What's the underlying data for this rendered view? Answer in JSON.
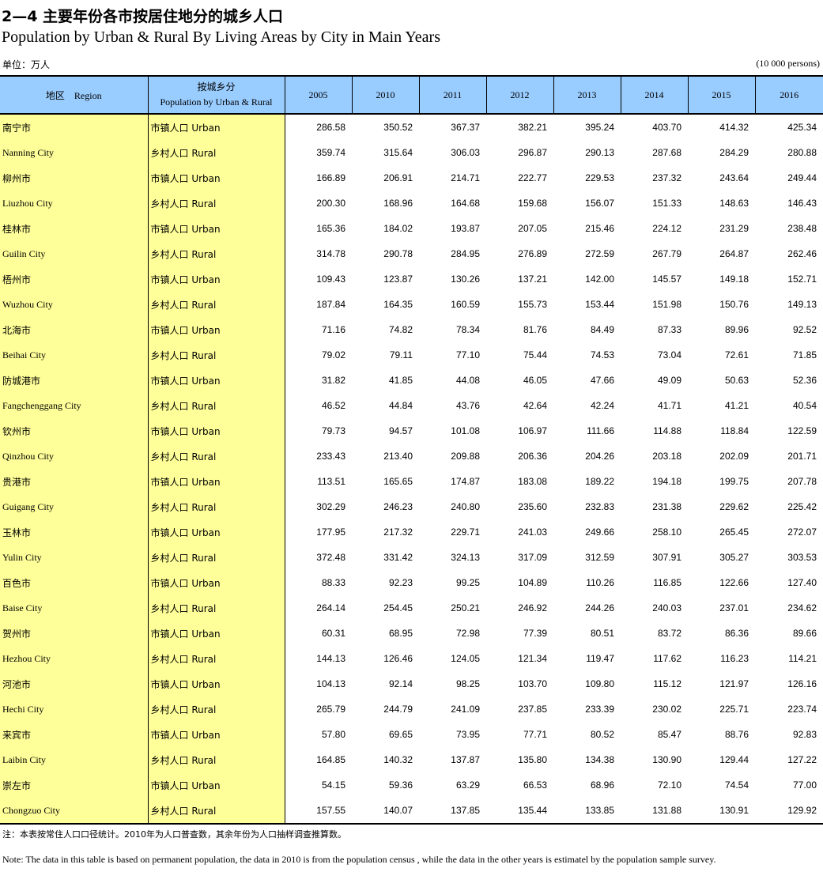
{
  "title": {
    "cn": "2—4 主要年份各市按居住地分的城乡人口",
    "en": "Population by Urban & Rural By Living Areas by City in Main Years"
  },
  "unit": {
    "cn": "单位：万人",
    "en": "(10 000 persons)"
  },
  "table": {
    "header": {
      "region": "地区    Region",
      "category_cn": "按城乡分",
      "category_en": "Population by Urban & Rural",
      "years": [
        "2005",
        "2010",
        "2011",
        "2012",
        "2013",
        "2014",
        "2015",
        "2016"
      ]
    },
    "rows": [
      {
        "region": "南宁市",
        "lang": "cn",
        "category": "市镇人口 Urban",
        "values": [
          "286.58",
          "350.52",
          "367.37",
          "382.21",
          "395.24",
          "403.70",
          "414.32",
          "425.34"
        ]
      },
      {
        "region": "Nanning City",
        "lang": "en",
        "category": "乡村人口 Rural",
        "values": [
          "359.74",
          "315.64",
          "306.03",
          "296.87",
          "290.13",
          "287.68",
          "284.29",
          "280.88"
        ]
      },
      {
        "region": "柳州市",
        "lang": "cn",
        "category": "市镇人口 Urban",
        "values": [
          "166.89",
          "206.91",
          "214.71",
          "222.77",
          "229.53",
          "237.32",
          "243.64",
          "249.44"
        ]
      },
      {
        "region": "Liuzhou City",
        "lang": "en",
        "category": "乡村人口 Rural",
        "values": [
          "200.30",
          "168.96",
          "164.68",
          "159.68",
          "156.07",
          "151.33",
          "148.63",
          "146.43"
        ]
      },
      {
        "region": "桂林市",
        "lang": "cn",
        "category": "市镇人口 Urban",
        "values": [
          "165.36",
          "184.02",
          "193.87",
          "207.05",
          "215.46",
          "224.12",
          "231.29",
          "238.48"
        ]
      },
      {
        "region": "Guilin City",
        "lang": "en",
        "category": "乡村人口 Rural",
        "values": [
          "314.78",
          "290.78",
          "284.95",
          "276.89",
          "272.59",
          "267.79",
          "264.87",
          "262.46"
        ]
      },
      {
        "region": "梧州市",
        "lang": "cn",
        "category": "市镇人口 Urban",
        "values": [
          "109.43",
          "123.87",
          "130.26",
          "137.21",
          "142.00",
          "145.57",
          "149.18",
          "152.71"
        ]
      },
      {
        "region": "Wuzhou City",
        "lang": "en",
        "category": "乡村人口 Rural",
        "values": [
          "187.84",
          "164.35",
          "160.59",
          "155.73",
          "153.44",
          "151.98",
          "150.76",
          "149.13"
        ]
      },
      {
        "region": "北海市",
        "lang": "cn",
        "category": "市镇人口 Urban",
        "values": [
          "71.16",
          "74.82",
          "78.34",
          "81.76",
          "84.49",
          "87.33",
          "89.96",
          "92.52"
        ]
      },
      {
        "region": "Beihai City",
        "lang": "en",
        "category": "乡村人口 Rural",
        "values": [
          "79.02",
          "79.11",
          "77.10",
          "75.44",
          "74.53",
          "73.04",
          "72.61",
          "71.85"
        ]
      },
      {
        "region": "防城港市",
        "lang": "cn",
        "category": "市镇人口 Urban",
        "values": [
          "31.82",
          "41.85",
          "44.08",
          "46.05",
          "47.66",
          "49.09",
          "50.63",
          "52.36"
        ]
      },
      {
        "region": "Fangchenggang City",
        "lang": "en",
        "category": "乡村人口 Rural",
        "values": [
          "46.52",
          "44.84",
          "43.76",
          "42.64",
          "42.24",
          "41.71",
          "41.21",
          "40.54"
        ]
      },
      {
        "region": "钦州市",
        "lang": "cn",
        "category": "市镇人口 Urban",
        "values": [
          "79.73",
          "94.57",
          "101.08",
          "106.97",
          "111.66",
          "114.88",
          "118.84",
          "122.59"
        ]
      },
      {
        "region": "Qinzhou City",
        "lang": "en",
        "category": "乡村人口 Rural",
        "values": [
          "233.43",
          "213.40",
          "209.88",
          "206.36",
          "204.26",
          "203.18",
          "202.09",
          "201.71"
        ]
      },
      {
        "region": "贵港市",
        "lang": "cn",
        "category": "市镇人口 Urban",
        "values": [
          "113.51",
          "165.65",
          "174.87",
          "183.08",
          "189.22",
          "194.18",
          "199.75",
          "207.78"
        ]
      },
      {
        "region": "Guigang City",
        "lang": "en",
        "category": "乡村人口 Rural",
        "values": [
          "302.29",
          "246.23",
          "240.80",
          "235.60",
          "232.83",
          "231.38",
          "229.62",
          "225.42"
        ]
      },
      {
        "region": "玉林市",
        "lang": "cn",
        "category": "市镇人口 Urban",
        "values": [
          "177.95",
          "217.32",
          "229.71",
          "241.03",
          "249.66",
          "258.10",
          "265.45",
          "272.07"
        ]
      },
      {
        "region": "Yulin City",
        "lang": "en",
        "category": "乡村人口 Rural",
        "values": [
          "372.48",
          "331.42",
          "324.13",
          "317.09",
          "312.59",
          "307.91",
          "305.27",
          "303.53"
        ]
      },
      {
        "region": "百色市",
        "lang": "cn",
        "category": "市镇人口 Urban",
        "values": [
          "88.33",
          "92.23",
          "99.25",
          "104.89",
          "110.26",
          "116.85",
          "122.66",
          "127.40"
        ]
      },
      {
        "region": "Baise City",
        "lang": "en",
        "category": "乡村人口 Rural",
        "values": [
          "264.14",
          "254.45",
          "250.21",
          "246.92",
          "244.26",
          "240.03",
          "237.01",
          "234.62"
        ]
      },
      {
        "region": "贺州市",
        "lang": "cn",
        "category": "市镇人口 Urban",
        "values": [
          "60.31",
          "68.95",
          "72.98",
          "77.39",
          "80.51",
          "83.72",
          "86.36",
          "89.66"
        ]
      },
      {
        "region": "Hezhou City",
        "lang": "en",
        "category": "乡村人口 Rural",
        "values": [
          "144.13",
          "126.46",
          "124.05",
          "121.34",
          "119.47",
          "117.62",
          "116.23",
          "114.21"
        ]
      },
      {
        "region": "河池市",
        "lang": "cn",
        "category": "市镇人口 Urban",
        "values": [
          "104.13",
          "92.14",
          "98.25",
          "103.70",
          "109.80",
          "115.12",
          "121.97",
          "126.16"
        ]
      },
      {
        "region": "Hechi City",
        "lang": "en",
        "category": "乡村人口 Rural",
        "values": [
          "265.79",
          "244.79",
          "241.09",
          "237.85",
          "233.39",
          "230.02",
          "225.71",
          "223.74"
        ]
      },
      {
        "region": "来宾市",
        "lang": "cn",
        "category": "市镇人口 Urban",
        "values": [
          "57.80",
          "69.65",
          "73.95",
          "77.71",
          "80.52",
          "85.47",
          "88.76",
          "92.83"
        ]
      },
      {
        "region": "Laibin City",
        "lang": "en",
        "category": "乡村人口 Rural",
        "values": [
          "164.85",
          "140.32",
          "137.87",
          "135.80",
          "134.38",
          "130.90",
          "129.44",
          "127.22"
        ]
      },
      {
        "region": "崇左市",
        "lang": "cn",
        "category": "市镇人口 Urban",
        "values": [
          "54.15",
          "59.36",
          "63.29",
          "66.53",
          "68.96",
          "72.10",
          "74.54",
          "77.00"
        ]
      },
      {
        "region": "Chongzuo City",
        "lang": "en",
        "category": "乡村人口 Rural",
        "values": [
          "157.55",
          "140.07",
          "137.85",
          "135.44",
          "133.85",
          "131.88",
          "130.91",
          "129.92"
        ]
      }
    ]
  },
  "notes": {
    "cn": "注：本表按常住人口口径统计。2010年为人口普查数，其余年份为人口抽样调查推算数。",
    "en": "Note: The data in this table is based on permanent population, the data in 2010 is from the population census , while the data in the other years is estimatel by the population sample survey."
  },
  "colors": {
    "header_bg": "#99ccff",
    "label_bg": "#ffff99",
    "rule": "#000000"
  }
}
